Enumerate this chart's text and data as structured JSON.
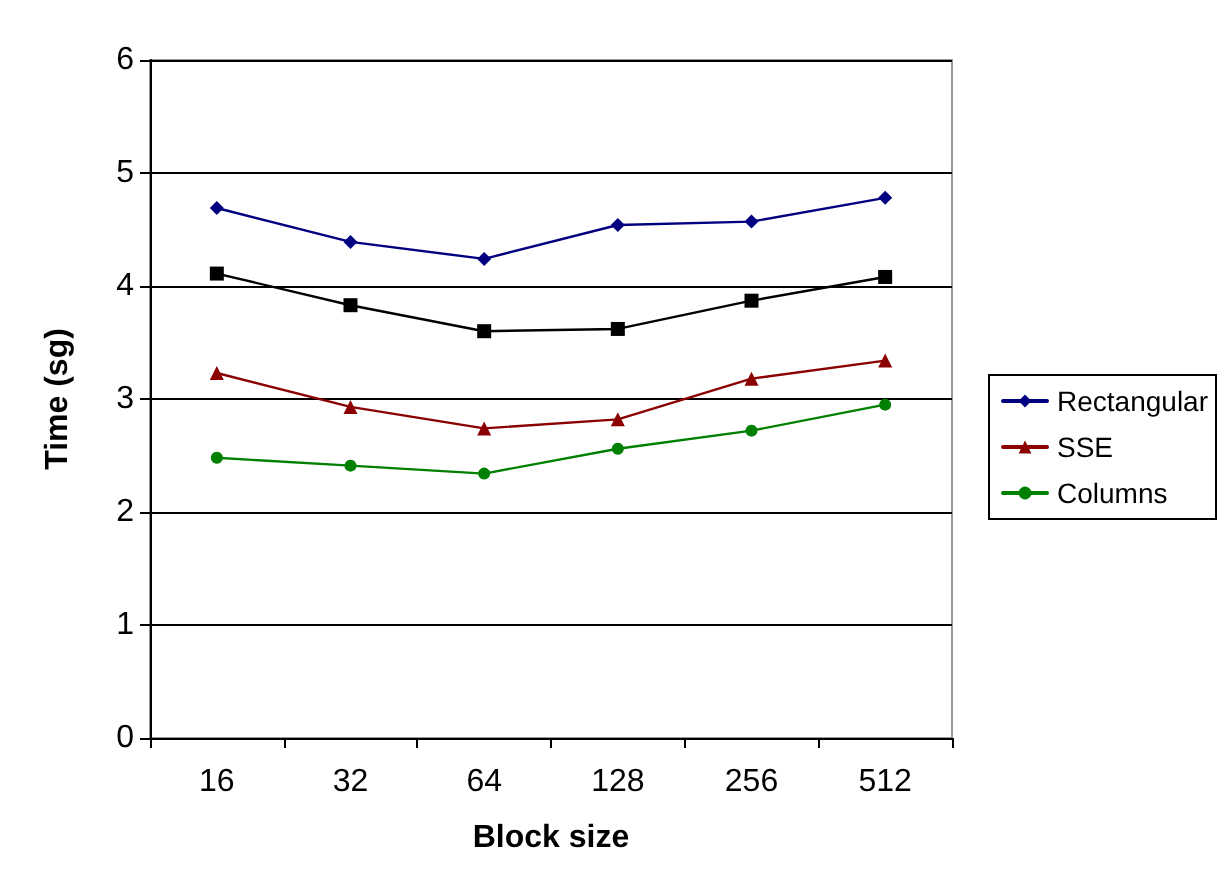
{
  "chart_data": {
    "type": "line",
    "xlabel": "Block size",
    "ylabel": "Time (sg)",
    "categories": [
      "16",
      "32",
      "64",
      "128",
      "256",
      "512"
    ],
    "ylim": [
      0,
      6
    ],
    "yticks": [
      0,
      1,
      2,
      3,
      4,
      5,
      6
    ],
    "grid": "y",
    "legend": "right",
    "series": [
      {
        "name": "Rectangular",
        "color": "#000080",
        "marker": "diamond",
        "values": [
          4.69,
          4.39,
          4.24,
          4.54,
          4.57,
          4.78
        ]
      },
      {
        "color": "#000000",
        "marker": "square",
        "values": [
          4.11,
          3.83,
          3.6,
          3.62,
          3.87,
          4.08
        ]
      },
      {
        "name": "SSE",
        "color": "#8b0000",
        "marker": "triangle",
        "values": [
          3.23,
          2.93,
          2.74,
          2.82,
          3.18,
          3.34
        ]
      },
      {
        "name": "Columns",
        "color": "#008000",
        "marker": "circle",
        "values": [
          2.48,
          2.41,
          2.34,
          2.56,
          2.72,
          2.95
        ]
      }
    ]
  }
}
